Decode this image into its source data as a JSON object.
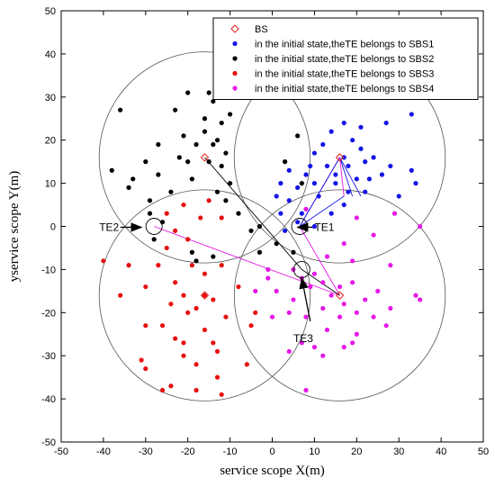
{
  "chart_data": {
    "type": "scatter",
    "xlabel": "service scope X(m)",
    "ylabel": "yservice scope Y(m)",
    "xlim": [
      -50,
      50
    ],
    "ylim": [
      -50,
      50
    ],
    "xticks": [
      -50,
      -40,
      -30,
      -20,
      -10,
      0,
      10,
      20,
      30,
      40,
      50
    ],
    "yticks": [
      -50,
      -40,
      -30,
      -20,
      -10,
      0,
      10,
      20,
      30,
      40,
      50
    ],
    "grid": false,
    "legend_position": "top-right",
    "legend": [
      {
        "label": "BS",
        "marker": "diamond",
        "color": "#e0231c"
      },
      {
        "label": "in the initial state,theTE belongs to SBS1",
        "marker": "dot",
        "color": "#1414e6"
      },
      {
        "label": "in the initial state,theTE belongs to SBS2",
        "marker": "dot",
        "color": "#000000"
      },
      {
        "label": "in the initial state,theTE belongs to SBS3",
        "marker": "dot",
        "color": "#e60f0f"
      },
      {
        "label": "in the initial state,theTE belongs to SBS4",
        "marker": "dot",
        "color": "#e619e6"
      }
    ],
    "base_stations": [
      {
        "x": 16,
        "y": 16
      },
      {
        "x": -16,
        "y": 16
      },
      {
        "x": -16,
        "y": -16
      },
      {
        "x": 16,
        "y": -16
      }
    ],
    "coverage_circles": [
      {
        "cx": 16,
        "cy": 16,
        "r": 25
      },
      {
        "cx": -16,
        "cy": 16,
        "r": 25
      },
      {
        "cx": -16,
        "cy": -16,
        "r": 25
      },
      {
        "cx": 16,
        "cy": -16,
        "r": 25
      }
    ],
    "series": [
      {
        "name": "in the initial state,theTE belongs to SBS1",
        "color": "#1414e6",
        "points": [
          [
            17,
            24
          ],
          [
            21,
            23
          ],
          [
            27,
            24
          ],
          [
            33,
            26
          ],
          [
            14,
            22
          ],
          [
            19,
            20
          ],
          [
            12,
            19
          ],
          [
            21,
            18
          ],
          [
            10,
            17
          ],
          [
            17,
            16
          ],
          [
            24,
            16
          ],
          [
            9,
            14
          ],
          [
            13,
            14
          ],
          [
            18,
            14
          ],
          [
            22,
            15
          ],
          [
            28,
            14
          ],
          [
            4,
            13
          ],
          [
            8,
            12
          ],
          [
            15,
            12
          ],
          [
            20,
            11
          ],
          [
            26,
            12
          ],
          [
            33,
            13
          ],
          [
            2,
            10
          ],
          [
            6,
            9
          ],
          [
            10,
            10
          ],
          [
            15,
            10
          ],
          [
            23,
            11
          ],
          [
            34,
            10
          ],
          [
            1,
            7
          ],
          [
            4,
            6
          ],
          [
            11,
            7
          ],
          [
            18,
            8
          ],
          [
            22,
            8
          ],
          [
            30,
            7
          ],
          [
            2,
            3
          ],
          [
            7,
            3
          ],
          [
            14,
            3
          ],
          [
            17,
            5
          ],
          [
            3,
            -1
          ],
          [
            6,
            1
          ],
          [
            10,
            0
          ]
        ]
      },
      {
        "name": "in the initial state,theTE belongs to SBS2",
        "color": "#000000",
        "points": [
          [
            -20,
            31
          ],
          [
            -15,
            31
          ],
          [
            -36,
            27
          ],
          [
            -23,
            27
          ],
          [
            -14,
            29
          ],
          [
            -16,
            25
          ],
          [
            -10,
            26
          ],
          [
            -21,
            21
          ],
          [
            -16,
            22
          ],
          [
            -12,
            24
          ],
          [
            -13,
            20
          ],
          [
            -18,
            19
          ],
          [
            -14,
            19
          ],
          [
            -27,
            19
          ],
          [
            -22,
            16
          ],
          [
            -11,
            17
          ],
          [
            -20,
            15
          ],
          [
            -15,
            15
          ],
          [
            -12,
            14
          ],
          [
            -30,
            15
          ],
          [
            -27,
            12
          ],
          [
            -38,
            13
          ],
          [
            -33,
            11
          ],
          [
            -10,
            10
          ],
          [
            -19,
            11
          ],
          [
            -34,
            9
          ],
          [
            -24,
            8
          ],
          [
            -13,
            8
          ],
          [
            -29,
            6
          ],
          [
            -11,
            6
          ],
          [
            -29,
            3
          ],
          [
            -8,
            3
          ],
          [
            -26,
            1
          ],
          [
            -5,
            -1
          ],
          [
            -28,
            -3
          ],
          [
            -3,
            -6
          ],
          [
            -19,
            -6
          ],
          [
            -18,
            -8
          ],
          [
            -14,
            -7
          ],
          [
            -3,
            0
          ],
          [
            1,
            -4
          ],
          [
            5,
            -6
          ],
          [
            3,
            15
          ],
          [
            6,
            21
          ],
          [
            7,
            10
          ]
        ]
      },
      {
        "name": "in the initial state,theTE belongs to SBS3",
        "color": "#e60f0f",
        "points": [
          [
            -15,
            6
          ],
          [
            -21,
            5
          ],
          [
            -25,
            3
          ],
          [
            -17,
            2
          ],
          [
            -12,
            2
          ],
          [
            -23,
            -1
          ],
          [
            -20,
            -3
          ],
          [
            -25,
            -5
          ],
          [
            -40,
            -8
          ],
          [
            -34,
            -9
          ],
          [
            -27,
            -9
          ],
          [
            -19,
            -9
          ],
          [
            -12,
            -9
          ],
          [
            -23,
            -13
          ],
          [
            -16,
            -11
          ],
          [
            -30,
            -14
          ],
          [
            -8,
            -14
          ],
          [
            -36,
            -16
          ],
          [
            -21,
            -16
          ],
          [
            -16,
            -16
          ],
          [
            -14,
            -17
          ],
          [
            -24,
            -18
          ],
          [
            -18,
            -19
          ],
          [
            -11,
            -21
          ],
          [
            -20,
            -20
          ],
          [
            -4,
            -20
          ],
          [
            -26,
            -23
          ],
          [
            -30,
            -23
          ],
          [
            -16,
            -24
          ],
          [
            -5,
            -23
          ],
          [
            -23,
            -26
          ],
          [
            -14,
            -27
          ],
          [
            -21,
            -27
          ],
          [
            -13,
            -29
          ],
          [
            -21,
            -30
          ],
          [
            -31,
            -31
          ],
          [
            -18,
            -32
          ],
          [
            -30,
            -33
          ],
          [
            -6,
            -32
          ],
          [
            -13,
            -35
          ],
          [
            -24,
            -37
          ],
          [
            -18,
            -38
          ],
          [
            -12,
            -39
          ],
          [
            -26,
            -38
          ]
        ]
      },
      {
        "name": "in the initial state,theTE belongs to SBS4",
        "color": "#e619e6",
        "points": [
          [
            29,
            3
          ],
          [
            20,
            2
          ],
          [
            24,
            -2
          ],
          [
            35,
            0
          ],
          [
            8,
            4
          ],
          [
            17,
            -4
          ],
          [
            13,
            -7
          ],
          [
            19,
            -8
          ],
          [
            28,
            -9
          ],
          [
            10,
            -11
          ],
          [
            5,
            -10
          ],
          [
            7,
            -12
          ],
          [
            12,
            -13
          ],
          [
            16,
            -14
          ],
          [
            19,
            -13
          ],
          [
            9,
            -14
          ],
          [
            22,
            -17
          ],
          [
            25,
            -15
          ],
          [
            34,
            -16
          ],
          [
            35,
            -17
          ],
          [
            1,
            -15
          ],
          [
            14,
            -16
          ],
          [
            17,
            -18
          ],
          [
            12,
            -19
          ],
          [
            20,
            -20
          ],
          [
            5,
            -17
          ],
          [
            28,
            -19
          ],
          [
            8,
            -21
          ],
          [
            16,
            -21
          ],
          [
            24,
            -21
          ],
          [
            13,
            -24
          ],
          [
            20,
            -25
          ],
          [
            27,
            -23
          ],
          [
            0,
            -21
          ],
          [
            4,
            -20
          ],
          [
            19,
            -27
          ],
          [
            10,
            -28
          ],
          [
            7,
            -27
          ],
          [
            4,
            -29
          ],
          [
            8,
            -38
          ],
          [
            17,
            -28
          ],
          [
            12,
            -30
          ],
          [
            -1,
            -10
          ],
          [
            -4,
            -15
          ],
          [
            -1,
            -12
          ]
        ]
      }
    ],
    "annotations": [
      {
        "label": "TE1",
        "x": 6.5,
        "y": 0,
        "label_x": 10,
        "label_y": -0.2,
        "arrow_from": [
          9.5,
          -0.2
        ],
        "arrow_to": [
          6,
          -0.2
        ]
      },
      {
        "label": "TE2",
        "x": -28,
        "y": 0,
        "label_x": -41,
        "label_y": -0.2,
        "arrow_from": [
          -36,
          -0.2
        ],
        "arrow_to": [
          -31,
          -0.2
        ]
      },
      {
        "label": "TE3",
        "x": 7,
        "y": -10,
        "label_x": 5,
        "label_y": -26,
        "arrow_from": [
          9,
          -22
        ],
        "arrow_to": [
          7,
          -12
        ]
      }
    ]
  }
}
